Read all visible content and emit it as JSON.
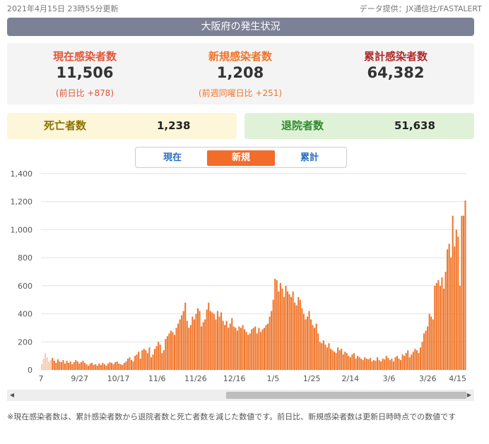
{
  "header": {
    "updated": "2021年4月15日 23時55分更新",
    "source": "データ提供：JX通信社/FASTALERT",
    "region": "大阪府の発生状況"
  },
  "stats": {
    "current": {
      "label": "現在感染者数",
      "value": "11,506",
      "sub": "(前日比 +878)"
    },
    "new": {
      "label": "新規感染者数",
      "value": "1,208",
      "sub": "(前週同曜日比 +251)"
    },
    "total": {
      "label": "累計感染者数",
      "value": "64,382"
    }
  },
  "deaths": {
    "label": "死亡者数",
    "value": "1,238"
  },
  "discharged": {
    "label": "退院者数",
    "value": "51,638"
  },
  "tabs": [
    "現在",
    "新規",
    "累計"
  ],
  "active_tab": 1,
  "note": "※現在感染者数は、累計感染者数から退院者数と死亡者数を減じた数値です。前日比、新規感染者数は更新日時時点での数値です",
  "colors": {
    "bar": "#f07428",
    "bar_early": "#f9c9b0",
    "region_bg": "#7d8196"
  },
  "chart_data": {
    "type": "bar",
    "ylim": [
      0,
      1400
    ],
    "yticks": [
      0,
      200,
      400,
      600,
      800,
      1000,
      1200,
      1400
    ],
    "ytick_labels": [
      "0",
      "200",
      "400",
      "600",
      "800",
      "1,000",
      "1,200",
      "1,400"
    ],
    "xtick_labels": [
      "7",
      "9/27",
      "10/17",
      "11/6",
      "11/26",
      "12/16",
      "1/5",
      "1/25",
      "2/14",
      "3/6",
      "3/26",
      "4/15"
    ],
    "values": [
      40,
      80,
      120,
      90,
      60,
      70,
      85,
      65,
      50,
      75,
      60,
      55,
      70,
      45,
      65,
      50,
      60,
      40,
      55,
      70,
      60,
      45,
      55,
      65,
      50,
      40,
      30,
      45,
      50,
      35,
      40,
      30,
      45,
      35,
      50,
      40,
      30,
      45,
      55,
      50,
      40,
      55,
      60,
      45,
      40,
      35,
      50,
      60,
      80,
      90,
      70,
      60,
      100,
      110,
      130,
      80,
      140,
      150,
      140,
      120,
      160,
      90,
      110,
      150,
      170,
      200,
      180,
      120,
      140,
      220,
      240,
      260,
      280,
      270,
      250,
      300,
      330,
      360,
      390,
      420,
      480,
      350,
      300,
      320,
      380,
      360,
      400,
      440,
      420,
      310,
      340,
      360,
      430,
      480,
      420,
      410,
      400,
      360,
      420,
      380,
      410,
      350,
      320,
      350,
      300,
      330,
      370,
      310,
      300,
      280,
      310,
      300,
      320,
      290,
      270,
      250,
      260,
      290,
      300,
      310,
      260,
      300,
      270,
      290,
      300,
      320,
      330,
      380,
      420,
      500,
      650,
      640,
      560,
      620,
      580,
      520,
      600,
      560,
      540,
      520,
      560,
      480,
      460,
      520,
      500,
      440,
      400,
      360,
      380,
      420,
      360,
      320,
      300,
      330,
      260,
      200,
      190,
      210,
      180,
      160,
      190,
      150,
      140,
      130,
      120,
      160,
      140,
      150,
      110,
      130,
      120,
      100,
      90,
      110,
      120,
      80,
      100,
      90,
      80,
      70,
      90,
      80,
      75,
      85,
      60,
      70,
      65,
      90,
      70,
      60,
      80,
      75,
      100,
      85,
      70,
      80,
      60,
      90,
      100,
      80,
      70,
      110,
      100,
      120,
      140,
      90,
      110,
      130,
      150,
      140,
      120,
      160,
      200,
      260,
      280,
      310,
      400,
      380,
      360,
      600,
      620,
      640,
      600,
      660,
      580,
      700,
      860,
      900,
      800,
      1100,
      880,
      1000,
      950,
      600,
      1100,
      1100,
      1208
    ]
  }
}
